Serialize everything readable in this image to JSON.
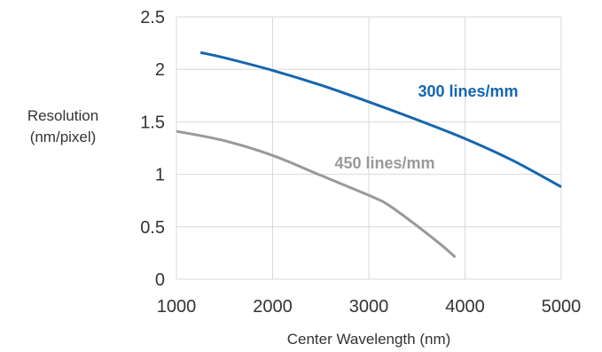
{
  "chart_data": {
    "type": "line",
    "title": "",
    "xlabel": "Center Wavelength (nm)",
    "ylabel": [
      "Resolution",
      "(nm/pixel)"
    ],
    "xlim": [
      1000,
      5000
    ],
    "ylim": [
      0,
      2.5
    ],
    "xticks": [
      1000,
      2000,
      3000,
      4000,
      5000
    ],
    "yticks": [
      0,
      0.5,
      1,
      1.5,
      2,
      2.5
    ],
    "ytick_labels": [
      "0",
      "0.5",
      "1",
      "1.5",
      "2",
      "2.5"
    ],
    "grid": true,
    "legend": "none",
    "series": [
      {
        "name": "300 lines/mm",
        "color": "#1565b0",
        "x": [
          1250,
          1500,
          2000,
          2500,
          3000,
          3500,
          4000,
          4500,
          5000
        ],
        "y": [
          2.16,
          2.11,
          1.99,
          1.85,
          1.69,
          1.52,
          1.34,
          1.13,
          0.88
        ]
      },
      {
        "name": "450 lines/mm",
        "color": "#999999",
        "x": [
          1000,
          1500,
          2000,
          2500,
          3000,
          3200,
          3500,
          3750,
          3900
        ],
        "y": [
          1.41,
          1.32,
          1.18,
          0.99,
          0.8,
          0.71,
          0.51,
          0.33,
          0.21
        ]
      }
    ]
  }
}
